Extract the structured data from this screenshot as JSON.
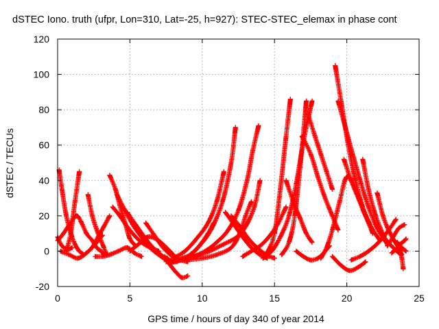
{
  "chart_data": {
    "type": "scatter",
    "title": "dSTEC Iono. truth (ufpr, Lon=310, Lat=-25, h=927): STEC-STEC_elemax in phase cont",
    "xlabel": "GPS time / hours of day 340 of year 2014",
    "ylabel": "dSTEC  / TECUs",
    "xlim": [
      0,
      25
    ],
    "ylim": [
      -20,
      120
    ],
    "xticks": [
      "0",
      "5",
      "10",
      "15",
      "20",
      "25"
    ],
    "yticks": [
      "-20",
      "0",
      "20",
      "40",
      "60",
      "80",
      "100",
      "120"
    ],
    "grid": true,
    "marker": "+",
    "color": "#ff0000",
    "series": [
      {
        "x": [
          0.0,
          0.3,
          0.7,
          1.0
        ],
        "y": [
          8,
          3,
          1,
          2
        ]
      },
      {
        "x": [
          0.1,
          0.3,
          0.6,
          1.0,
          1.4,
          1.8
        ],
        "y": [
          46,
          35,
          20,
          8,
          1,
          -2
        ]
      },
      {
        "x": [
          0.0,
          0.4,
          0.9,
          1.3,
          1.6,
          2.0,
          2.4,
          2.7,
          3.0,
          3.2
        ],
        "y": [
          6,
          10,
          16,
          20,
          17,
          10,
          6,
          2,
          0,
          -2
        ]
      },
      {
        "x": [
          0.6,
          0.9,
          1.2,
          1.5
        ],
        "y": [
          0,
          10,
          28,
          45
        ]
      },
      {
        "x": [
          0.2,
          0.8,
          1.4,
          2.0,
          2.6,
          3.1
        ],
        "y": [
          0,
          -2,
          -4,
          -1,
          4,
          9
        ]
      },
      {
        "x": [
          2.1,
          2.4,
          2.8,
          3.2,
          3.4
        ],
        "y": [
          32,
          20,
          10,
          2,
          -2
        ]
      },
      {
        "x": [
          2.4,
          2.8,
          3.2,
          3.6
        ],
        "y": [
          2,
          8,
          14,
          20
        ]
      },
      {
        "x": [
          2.6,
          3.1,
          3.6,
          4.2,
          4.8,
          5.3,
          5.8
        ],
        "y": [
          -3,
          -3,
          -2,
          0,
          2,
          -1,
          -3
        ]
      },
      {
        "x": [
          3.6,
          4.0,
          4.3,
          4.7,
          5.0,
          5.4
        ],
        "y": [
          43,
          35,
          26,
          15,
          7,
          3
        ]
      },
      {
        "x": [
          3.8,
          4.3,
          4.8,
          5.3,
          5.8,
          6.4,
          7.0
        ],
        "y": [
          25,
          20,
          14,
          9,
          5,
          2,
          0
        ]
      },
      {
        "x": [
          4.1,
          4.6,
          5.2,
          5.8,
          6.4,
          7.0,
          7.6
        ],
        "y": [
          32,
          24,
          15,
          8,
          2,
          -2,
          -4
        ]
      },
      {
        "x": [
          4.8,
          5.4,
          6.0,
          6.6,
          7.3,
          8.0
        ],
        "y": [
          22,
          15,
          8,
          2,
          -3,
          -6
        ]
      },
      {
        "x": [
          5.0,
          5.6,
          6.2,
          6.8,
          7.4,
          8.0
        ],
        "y": [
          0,
          4,
          8,
          7,
          3,
          -2
        ]
      },
      {
        "x": [
          6.1,
          6.6,
          7.2,
          7.8,
          8.5,
          9.0
        ],
        "y": [
          16,
          10,
          3,
          -2,
          -5,
          -6
        ]
      },
      {
        "x": [
          7.4,
          7.8,
          8.2,
          8.6,
          9.0
        ],
        "y": [
          -3,
          -8,
          -12,
          -15,
          -14
        ]
      },
      {
        "x": [
          7.0,
          7.5,
          8.0,
          8.6,
          9.2,
          9.8,
          10.4,
          10.8
        ],
        "y": [
          -2,
          -5,
          -6,
          -4,
          -2,
          3,
          10,
          16
        ]
      },
      {
        "x": [
          7.5,
          8.2,
          9.0,
          9.8,
          10.6,
          11.4,
          12.0,
          12.3
        ],
        "y": [
          -6,
          -6,
          -3,
          3,
          12,
          28,
          50,
          70
        ]
      },
      {
        "x": [
          8.0,
          8.8,
          9.6,
          10.4,
          11.0,
          11.5
        ],
        "y": [
          -4,
          0,
          7,
          16,
          28,
          45
        ]
      },
      {
        "x": [
          8.6,
          9.4,
          10.2,
          11.0,
          11.8,
          12.5,
          13.1,
          13.5,
          13.9
        ],
        "y": [
          -5,
          -3,
          0,
          5,
          12,
          23,
          40,
          57,
          71
        ]
      },
      {
        "x": [
          9.0,
          10.0,
          11.0,
          12.0,
          12.6,
          13.0,
          13.4
        ],
        "y": [
          -5,
          -4,
          -2,
          2,
          10,
          20,
          28
        ]
      },
      {
        "x": [
          9.5,
          10.5,
          11.5,
          12.4,
          13.0,
          13.6,
          14.0
        ],
        "y": [
          -3,
          0,
          4,
          8,
          14,
          25,
          40
        ]
      },
      {
        "x": [
          11.6,
          12.2,
          12.8,
          13.4,
          14.0,
          14.5
        ],
        "y": [
          22,
          15,
          8,
          2,
          -2,
          -4
        ]
      },
      {
        "x": [
          12.0,
          12.6,
          13.2,
          13.8,
          14.4,
          15.0
        ],
        "y": [
          20,
          14,
          7,
          2,
          -2,
          -4
        ]
      },
      {
        "x": [
          12.8,
          13.4,
          14.0,
          14.6,
          15.2,
          15.8
        ],
        "y": [
          -3,
          0,
          3,
          8,
          15,
          25
        ]
      },
      {
        "x": [
          14.2,
          14.8,
          15.4,
          16.0,
          16.5,
          17.0,
          17.6
        ],
        "y": [
          -4,
          0,
          8,
          20,
          38,
          62,
          85
        ]
      },
      {
        "x": [
          14.5,
          15.0,
          15.4,
          15.8,
          16.1
        ],
        "y": [
          -1,
          10,
          35,
          65,
          86
        ]
      },
      {
        "x": [
          15.5,
          16.0,
          16.4,
          16.8,
          17.2
        ],
        "y": [
          -2,
          5,
          20,
          50,
          85
        ]
      },
      {
        "x": [
          15.8,
          16.3,
          16.8,
          17.2,
          17.6
        ],
        "y": [
          40,
          28,
          18,
          10,
          5
        ]
      },
      {
        "x": [
          16.5,
          17.0,
          17.5,
          18.0,
          18.4,
          18.8
        ],
        "y": [
          0,
          -3,
          -5,
          -4,
          -1,
          3
        ]
      },
      {
        "x": [
          16.9,
          17.5,
          18.0,
          18.5,
          19.0,
          19.4
        ],
        "y": [
          65,
          55,
          42,
          30,
          20,
          12
        ]
      },
      {
        "x": [
          17.3,
          17.8,
          18.2,
          18.6,
          19.0
        ],
        "y": [
          78,
          65,
          55,
          45,
          35
        ]
      },
      {
        "x": [
          18.2,
          18.6,
          19.0,
          19.5,
          20.0,
          20.6,
          21.2,
          21.8
        ],
        "y": [
          -4,
          2,
          12,
          28,
          42,
          35,
          22,
          10
        ]
      },
      {
        "x": [
          19.2,
          19.6,
          20.1,
          20.6,
          21.1,
          21.6
        ],
        "y": [
          105,
          85,
          60,
          40,
          25,
          15
        ]
      },
      {
        "x": [
          19.4,
          19.9,
          20.4,
          21.0,
          21.5,
          22.1,
          22.8
        ],
        "y": [
          85,
          70,
          55,
          38,
          25,
          13,
          4
        ]
      },
      {
        "x": [
          19.8,
          20.3,
          20.8,
          21.3,
          21.8,
          22.3
        ],
        "y": [
          52,
          40,
          30,
          20,
          12,
          6
        ]
      },
      {
        "x": [
          19.0,
          19.6,
          20.2,
          20.8,
          21.3
        ],
        "y": [
          -3,
          -8,
          -11,
          -9,
          -6
        ]
      },
      {
        "x": [
          20.3,
          20.9,
          21.5,
          22.2,
          22.9,
          23.4
        ],
        "y": [
          -5,
          -3,
          0,
          5,
          12,
          18
        ]
      },
      {
        "x": [
          21.1,
          21.5,
          22.0,
          22.6,
          23.2,
          23.6
        ],
        "y": [
          52,
          35,
          20,
          8,
          2,
          -1
        ]
      },
      {
        "x": [
          22.1,
          22.5,
          23.0,
          23.5,
          23.8
        ],
        "y": [
          33,
          20,
          10,
          3,
          -2
        ]
      },
      {
        "x": [
          22.8,
          23.2,
          23.6,
          24.0
        ],
        "y": [
          3,
          8,
          13,
          15
        ]
      },
      {
        "x": [
          23.1,
          23.4,
          23.7,
          24.0,
          24.1
        ],
        "y": [
          -1,
          1,
          4,
          6,
          7
        ]
      },
      {
        "x": [
          23.3,
          23.6,
          23.8,
          23.9
        ],
        "y": [
          6,
          2,
          -4,
          -10
        ]
      },
      {
        "x": [
          23.5,
          23.8,
          24.1
        ],
        "y": [
          5,
          2,
          0
        ]
      }
    ]
  }
}
